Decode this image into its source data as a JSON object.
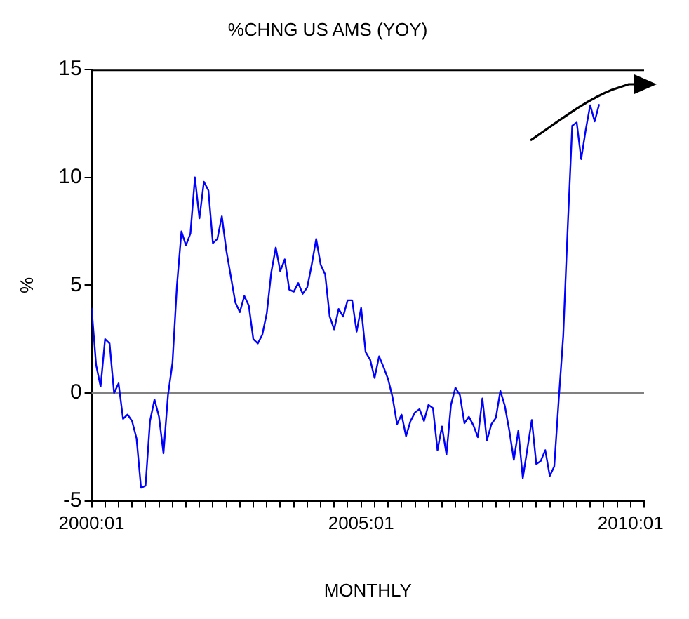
{
  "chart_data": {
    "type": "line",
    "title": "%CHNG US AMS (YOY)",
    "xlabel": "MONTHLY",
    "ylabel": "%",
    "x": [
      "2000-01",
      "2000-02",
      "2000-03",
      "2000-04",
      "2000-05",
      "2000-06",
      "2000-07",
      "2000-08",
      "2000-09",
      "2000-10",
      "2000-11",
      "2000-12",
      "2001-01",
      "2001-02",
      "2001-03",
      "2001-04",
      "2001-05",
      "2001-06",
      "2001-07",
      "2001-08",
      "2001-09",
      "2001-10",
      "2001-11",
      "2001-12",
      "2002-01",
      "2002-02",
      "2002-03",
      "2002-04",
      "2002-05",
      "2002-06",
      "2002-07",
      "2002-08",
      "2002-09",
      "2002-10",
      "2002-11",
      "2002-12",
      "2003-01",
      "2003-02",
      "2003-03",
      "2003-04",
      "2003-05",
      "2003-06",
      "2003-07",
      "2003-08",
      "2003-09",
      "2003-10",
      "2003-11",
      "2003-12",
      "2004-01",
      "2004-02",
      "2004-03",
      "2004-04",
      "2004-05",
      "2004-06",
      "2004-07",
      "2004-08",
      "2004-09",
      "2004-10",
      "2004-11",
      "2004-12",
      "2005-01",
      "2005-02",
      "2005-03",
      "2005-04",
      "2005-05",
      "2005-06",
      "2005-07",
      "2005-08",
      "2005-09",
      "2005-10",
      "2005-11",
      "2005-12",
      "2006-01",
      "2006-02",
      "2006-03",
      "2006-04",
      "2006-05",
      "2006-06",
      "2006-07",
      "2006-08",
      "2006-09",
      "2006-10",
      "2006-11",
      "2006-12",
      "2007-01",
      "2007-02",
      "2007-03",
      "2007-04",
      "2007-05",
      "2007-06",
      "2007-07",
      "2007-08",
      "2007-09",
      "2007-10",
      "2007-11",
      "2007-12",
      "2008-01",
      "2008-02",
      "2008-03",
      "2008-04",
      "2008-05",
      "2008-06",
      "2008-07",
      "2008-08",
      "2008-09",
      "2008-10",
      "2008-11",
      "2008-12",
      "2009-01",
      "2009-02",
      "2009-03",
      "2009-04",
      "2009-05",
      "2009-06"
    ],
    "series": [
      {
        "color": "#0000ff",
        "values": [
          3.95,
          1.3,
          0.3,
          2.5,
          2.3,
          0,
          0.45,
          -1.2,
          -1.0,
          -1.3,
          -2.1,
          -4.4,
          -4.3,
          -1.3,
          -0.3,
          -1.1,
          -2.8,
          -0.1,
          1.4,
          5.0,
          7.5,
          6.85,
          7.4,
          10.0,
          8.1,
          9.8,
          9.4,
          6.95,
          7.15,
          8.2,
          6.6,
          5.4,
          4.2,
          3.75,
          4.5,
          4.05,
          2.5,
          2.3,
          2.7,
          3.7,
          5.6,
          6.75,
          5.65,
          6.2,
          4.8,
          4.7,
          5.1,
          4.6,
          4.9,
          5.95,
          7.15,
          5.95,
          5.5,
          3.55,
          2.95,
          3.9,
          3.55,
          4.3,
          4.3,
          2.85,
          3.95,
          1.9,
          1.55,
          0.7,
          1.7,
          1.2,
          0.65,
          -0.2,
          -1.45,
          -1.0,
          -2.0,
          -1.3,
          -0.9,
          -0.75,
          -1.3,
          -0.55,
          -0.7,
          -2.65,
          -1.55,
          -2.85,
          -0.55,
          0.25,
          -0.1,
          -1.4,
          -1.1,
          -1.5,
          -2.05,
          -0.25,
          -2.2,
          -1.45,
          -1.15,
          0.1,
          -0.6,
          -1.75,
          -3.1,
          -1.75,
          -3.95,
          -2.6,
          -1.25,
          -3.3,
          -3.15,
          -2.65,
          -3.85,
          -3.4,
          -0.3,
          2.65,
          7.7,
          12.4,
          12.55,
          10.85,
          12.2,
          13.35,
          12.6,
          13.4
        ]
      }
    ],
    "xlim": [
      "2000-01",
      "2010-04"
    ],
    "xticks": [
      {
        "value": "2000-01",
        "label": "2000:01"
      },
      {
        "value": "2000-04",
        "label": null
      },
      {
        "value": "2000-07",
        "label": null
      },
      {
        "value": "2000-10",
        "label": null
      },
      {
        "value": "2001-01",
        "label": null
      },
      {
        "value": "2001-04",
        "label": null
      },
      {
        "value": "2001-07",
        "label": null
      },
      {
        "value": "2001-10",
        "label": null
      },
      {
        "value": "2002-01",
        "label": null
      },
      {
        "value": "2002-04",
        "label": null
      },
      {
        "value": "2002-07",
        "label": null
      },
      {
        "value": "2002-10",
        "label": null
      },
      {
        "value": "2003-01",
        "label": null
      },
      {
        "value": "2003-04",
        "label": null
      },
      {
        "value": "2003-07",
        "label": null
      },
      {
        "value": "2003-10",
        "label": null
      },
      {
        "value": "2004-01",
        "label": null
      },
      {
        "value": "2004-04",
        "label": null
      },
      {
        "value": "2004-07",
        "label": null
      },
      {
        "value": "2004-10",
        "label": null
      },
      {
        "value": "2005-01",
        "label": "2005:01"
      },
      {
        "value": "2005-04",
        "label": null
      },
      {
        "value": "2005-07",
        "label": null
      },
      {
        "value": "2005-10",
        "label": null
      },
      {
        "value": "2006-01",
        "label": null
      },
      {
        "value": "2006-04",
        "label": null
      },
      {
        "value": "2006-07",
        "label": null
      },
      {
        "value": "2006-10",
        "label": null
      },
      {
        "value": "2007-01",
        "label": null
      },
      {
        "value": "2007-04",
        "label": null
      },
      {
        "value": "2007-07",
        "label": null
      },
      {
        "value": "2007-10",
        "label": null
      },
      {
        "value": "2008-01",
        "label": null
      },
      {
        "value": "2008-04",
        "label": null
      },
      {
        "value": "2008-07",
        "label": null
      },
      {
        "value": "2008-10",
        "label": null
      },
      {
        "value": "2009-01",
        "label": null
      },
      {
        "value": "2009-04",
        "label": null
      },
      {
        "value": "2009-07",
        "label": null
      },
      {
        "value": "2009-10",
        "label": null
      },
      {
        "value": "2010-01",
        "label": "2010:01"
      },
      {
        "value": "2010-04",
        "label": null
      }
    ],
    "ylim": [
      -5,
      15
    ],
    "yticks": [
      -5,
      0,
      5,
      10,
      15
    ],
    "ref_lines": [
      {
        "axis": "y",
        "value": 0,
        "color": "#808080"
      }
    ],
    "grid": false,
    "legend": false,
    "marker": "none",
    "line_style": "solid"
  }
}
